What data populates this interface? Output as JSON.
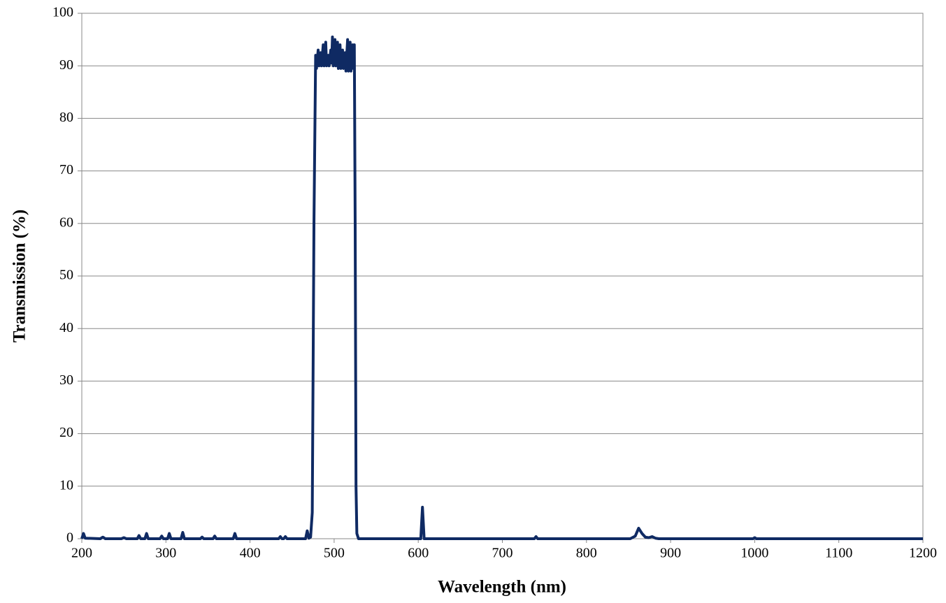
{
  "chart_data": {
    "type": "line",
    "xlabel": "Wavelength (nm)",
    "ylabel": "Transmission (%)",
    "x": [
      200,
      202,
      204,
      222,
      225,
      228,
      247,
      250,
      253,
      266,
      268,
      270,
      275,
      277,
      279,
      293,
      295,
      297,
      302,
      304,
      306,
      318,
      320,
      322,
      341,
      343,
      345,
      356,
      358,
      360,
      380,
      382,
      384,
      434,
      436,
      438,
      440,
      442,
      444,
      466,
      468,
      470,
      472,
      474,
      476,
      478,
      479,
      481,
      482,
      484,
      485,
      487,
      488,
      490,
      491,
      493,
      494,
      496,
      497,
      498,
      499,
      501,
      502,
      504,
      505,
      507,
      508,
      510,
      511,
      513,
      514,
      516,
      517,
      519,
      520,
      522,
      523,
      524,
      525,
      526,
      527,
      529,
      603,
      605,
      607,
      738,
      740,
      742,
      852,
      858,
      862,
      866,
      870,
      874,
      878,
      882,
      886,
      998,
      1000,
      1002,
      1200
    ],
    "values": [
      0,
      1.0,
      0.1,
      0,
      0.3,
      0,
      0,
      0.2,
      0,
      0,
      0.6,
      0,
      0,
      1.0,
      0,
      0,
      0.5,
      0,
      0,
      1.0,
      0,
      0,
      1.2,
      0,
      0,
      0.3,
      0,
      0,
      0.5,
      0,
      0,
      1.0,
      0,
      0,
      0.4,
      0,
      0,
      0.4,
      0,
      0,
      1.5,
      0.1,
      0.3,
      5,
      60,
      92,
      89.5,
      93,
      90,
      92.5,
      90,
      94,
      90,
      94.5,
      90,
      92,
      90,
      93,
      90.5,
      95.5,
      90,
      95,
      90,
      94.5,
      89.5,
      94,
      89.5,
      93,
      89.5,
      92.5,
      89,
      95,
      89,
      94.5,
      89,
      94,
      89.5,
      94,
      60,
      10,
      1,
      0,
      0,
      6,
      0,
      0,
      0.4,
      0,
      0,
      0.5,
      2.0,
      1.0,
      0.3,
      0.2,
      0.4,
      0.1,
      0,
      0,
      0.2,
      0,
      0
    ],
    "color": "#0f2a63",
    "xlim": [
      200,
      1200
    ],
    "xticks": [
      200,
      300,
      400,
      500,
      600,
      700,
      800,
      900,
      1000,
      1100,
      1200
    ],
    "ylim": [
      0,
      100
    ],
    "yticks": [
      0,
      10,
      20,
      30,
      40,
      50,
      60,
      70,
      80,
      90,
      100
    ],
    "grid": true
  }
}
